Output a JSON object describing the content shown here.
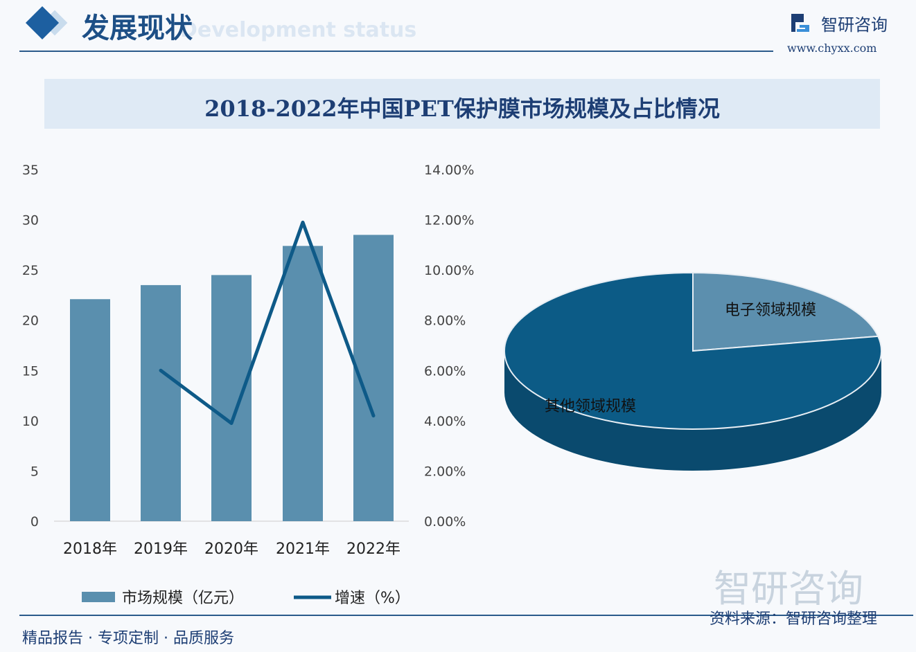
{
  "header": {
    "title": "发展现状",
    "subtitle_watermark": "Development status",
    "brand": "智研咨询",
    "url": "www.chyxx.com"
  },
  "chart_title": "2018-2022年中国PET保护膜市场规模及占比情况",
  "footer": {
    "left": "精品报告 · 专项定制 · 品质服务",
    "right": "资料来源：智研咨询整理",
    "watermark": "智研咨询"
  },
  "colors": {
    "bar": "#5a8fae",
    "line": "#0e5a88",
    "pie_other": "#0c5b86",
    "pie_other_side": "#0a4a6e",
    "pie_electronics": "#5c8fae"
  },
  "chart_data": [
    {
      "type": "bar+line",
      "categories": [
        "2018年",
        "2019年",
        "2020年",
        "2021年",
        "2022年"
      ],
      "series": [
        {
          "name": "市场规模（亿元）",
          "type": "bar",
          "axis": "left",
          "values": [
            22.1,
            23.5,
            24.5,
            27.4,
            28.5
          ]
        },
        {
          "name": "增速（%）",
          "type": "line",
          "axis": "right",
          "values": [
            null,
            6.0,
            3.9,
            11.9,
            4.2
          ]
        }
      ],
      "left_axis": {
        "ylim": [
          0,
          35
        ],
        "ticks": [
          "0",
          "5",
          "10",
          "15",
          "20",
          "25",
          "30",
          "35"
        ]
      },
      "right_axis": {
        "ylim": [
          0,
          14
        ],
        "ticks": [
          "0.00%",
          "2.00%",
          "4.00%",
          "6.00%",
          "8.00%",
          "10.00%",
          "12.00%",
          "14.00%"
        ]
      },
      "legend": "bottom",
      "grid": false
    },
    {
      "type": "pie",
      "style": "3d",
      "slices": [
        {
          "label": "电子领域规模",
          "value": 22
        },
        {
          "label": "其他领域规模",
          "value": 78
        }
      ]
    }
  ]
}
